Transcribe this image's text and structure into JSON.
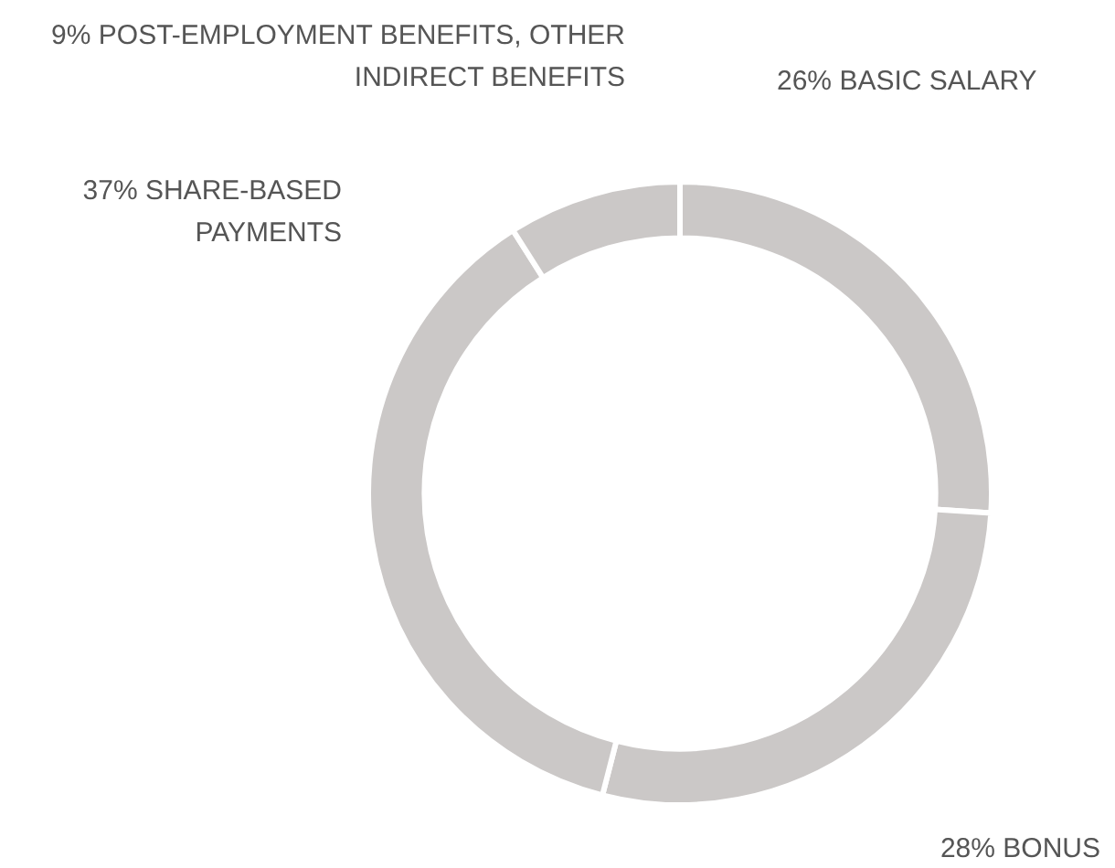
{
  "chart_data": {
    "type": "donut",
    "categories": [
      "BASIC SALARY",
      "BONUS",
      "SHARE-BASED PAYMENTS",
      "POST-EMPLOYMENT BENEFITS, OTHER INDIRECT BENEFITS"
    ],
    "values": [
      26,
      28,
      37,
      9
    ],
    "value_labels": [
      "26%",
      "28%",
      "37%",
      "9%"
    ],
    "colors": [
      "#cbc8c7",
      "#cbc8c7",
      "#cbc8c7",
      "#cbc8c7"
    ],
    "legend": false
  }
}
